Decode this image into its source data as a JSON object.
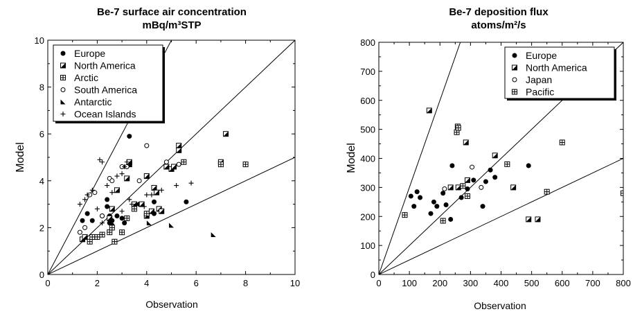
{
  "chart_data": [
    {
      "type": "scatter",
      "title": "Be-7 surface air concentration",
      "subtitle": "mBq/m³STP",
      "xlabel": "Observation",
      "ylabel": "Model",
      "xlim": [
        0,
        10
      ],
      "ylim": [
        0,
        10
      ],
      "xticks": [
        "0",
        "2",
        "4",
        "6",
        "8",
        "10"
      ],
      "yticks": [
        "0",
        "2",
        "4",
        "6",
        "8",
        "10"
      ],
      "reference_lines_slope": [
        0.5,
        1,
        2
      ],
      "legend_position": "top-left",
      "series": [
        {
          "name": "Europe",
          "marker": "filled-circle",
          "points": [
            [
              1.4,
              2.3
            ],
            [
              1.6,
              2.6
            ],
            [
              1.8,
              2.3
            ],
            [
              2.2,
              2.5
            ],
            [
              2.4,
              3.2
            ],
            [
              2.4,
              2.9
            ],
            [
              2.5,
              2.5
            ],
            [
              2.5,
              2.2
            ],
            [
              2.6,
              2.3
            ],
            [
              2.6,
              2.1
            ],
            [
              2.8,
              2.5
            ],
            [
              3.0,
              2.4
            ],
            [
              3.1,
              2.2
            ],
            [
              3.2,
              4.1
            ],
            [
              3.3,
              5.9
            ],
            [
              3.5,
              3.0
            ],
            [
              3.7,
              3.0
            ],
            [
              4.3,
              3.1
            ],
            [
              4.3,
              2.6
            ],
            [
              5.6,
              3.1
            ]
          ]
        },
        {
          "name": "North America",
          "marker": "half-square",
          "points": [
            [
              1.4,
              1.5
            ],
            [
              1.5,
              1.6
            ],
            [
              2.5,
              2.4
            ],
            [
              2.6,
              2.8
            ],
            [
              2.8,
              3.6
            ],
            [
              3.2,
              4.1
            ],
            [
              3.3,
              4.7
            ],
            [
              3.3,
              4.8
            ],
            [
              3.5,
              3.0
            ],
            [
              3.8,
              3.0
            ],
            [
              4.0,
              2.5
            ],
            [
              4.0,
              4.2
            ],
            [
              4.2,
              2.7
            ],
            [
              4.3,
              3.7
            ],
            [
              4.4,
              3.5
            ],
            [
              4.5,
              2.8
            ],
            [
              4.6,
              2.7
            ],
            [
              4.8,
              4.6
            ],
            [
              5.0,
              4.5
            ],
            [
              5.1,
              4.6
            ],
            [
              5.3,
              5.5
            ],
            [
              5.3,
              5.3
            ],
            [
              7.2,
              6.0
            ],
            [
              7.0,
              4.8
            ]
          ]
        },
        {
          "name": "Arctic",
          "marker": "grid-square",
          "points": [
            [
              1.7,
              1.4
            ],
            [
              1.8,
              1.6
            ],
            [
              2.0,
              1.6
            ],
            [
              2.2,
              1.7
            ],
            [
              2.5,
              1.8
            ],
            [
              2.6,
              2.0
            ],
            [
              2.7,
              1.4
            ],
            [
              3.0,
              1.8
            ],
            [
              3.2,
              2.4
            ],
            [
              3.5,
              2.8
            ],
            [
              4.0,
              2.6
            ],
            [
              5.5,
              4.8
            ],
            [
              7.0,
              4.7
            ],
            [
              8.0,
              4.7
            ]
          ]
        },
        {
          "name": "South America",
          "marker": "open-circle",
          "points": [
            [
              1.3,
              1.8
            ],
            [
              1.5,
              2.0
            ],
            [
              1.7,
              3.4
            ],
            [
              1.9,
              3.5
            ],
            [
              2.2,
              2.5
            ],
            [
              2.5,
              4.1
            ],
            [
              2.6,
              4.0
            ],
            [
              3.0,
              4.6
            ],
            [
              3.2,
              4.6
            ],
            [
              3.7,
              4.0
            ],
            [
              4.0,
              5.5
            ],
            [
              4.8,
              4.8
            ],
            [
              5.3,
              4.7
            ]
          ]
        },
        {
          "name": "Antarctic",
          "marker": "filled-triangle",
          "points": [
            [
              4.1,
              2.2
            ],
            [
              5.0,
              2.1
            ],
            [
              6.7,
              1.7
            ]
          ]
        },
        {
          "name": "Ocean Islands",
          "marker": "plus",
          "points": [
            [
              1.3,
              3.0
            ],
            [
              1.5,
              3.2
            ],
            [
              1.6,
              3.4
            ],
            [
              1.8,
              3.6
            ],
            [
              2.0,
              2.8
            ],
            [
              2.1,
              4.9
            ],
            [
              2.2,
              4.8
            ],
            [
              2.4,
              3.8
            ],
            [
              2.6,
              3.5
            ],
            [
              2.8,
              4.2
            ],
            [
              3.0,
              4.3
            ],
            [
              3.1,
              4.6
            ],
            [
              3.2,
              4.8
            ],
            [
              3.3,
              3.2
            ],
            [
              3.4,
              3.0
            ],
            [
              3.6,
              3.0
            ],
            [
              3.9,
              2.9
            ],
            [
              4.0,
              3.4
            ],
            [
              4.2,
              3.4
            ],
            [
              4.6,
              3.6
            ],
            [
              5.2,
              3.8
            ],
            [
              5.8,
              3.9
            ],
            [
              3.0,
              2.7
            ],
            [
              2.8,
              2.5
            ],
            [
              2.2,
              2.2
            ]
          ]
        }
      ]
    },
    {
      "type": "scatter",
      "title": "Be-7 deposition flux",
      "subtitle": "atoms/m²/s",
      "xlabel": "Observation",
      "ylabel": "Model",
      "xlim": [
        0,
        800
      ],
      "ylim": [
        0,
        800
      ],
      "xticks": [
        "0",
        "100",
        "200",
        "300",
        "400",
        "500",
        "600",
        "700",
        "800"
      ],
      "yticks": [
        "0",
        "100",
        "200",
        "300",
        "400",
        "500",
        "600",
        "700",
        "800"
      ],
      "reference_lines_slope": [
        0.5,
        1,
        3
      ],
      "legend_position": "top-right",
      "series": [
        {
          "name": "Europe",
          "marker": "filled-circle",
          "points": [
            [
              105,
              270
            ],
            [
              115,
              235
            ],
            [
              125,
              285
            ],
            [
              135,
              265
            ],
            [
              170,
              210
            ],
            [
              180,
              250
            ],
            [
              190,
              235
            ],
            [
              210,
              280
            ],
            [
              220,
              240
            ],
            [
              235,
              190
            ],
            [
              240,
              375
            ],
            [
              270,
              265
            ],
            [
              290,
              295
            ],
            [
              310,
              325
            ],
            [
              340,
              235
            ],
            [
              350,
              320
            ],
            [
              365,
              360
            ],
            [
              380,
              335
            ],
            [
              490,
              375
            ]
          ]
        },
        {
          "name": "North America",
          "marker": "half-square",
          "points": [
            [
              165,
              565
            ],
            [
              235,
              300
            ],
            [
              260,
              300
            ],
            [
              285,
              455
            ],
            [
              290,
              325
            ],
            [
              380,
              410
            ],
            [
              440,
              300
            ],
            [
              490,
              190
            ],
            [
              520,
              190
            ]
          ]
        },
        {
          "name": "Japan",
          "marker": "open-circle",
          "points": [
            [
              215,
              295
            ],
            [
              305,
              370
            ],
            [
              335,
              300
            ]
          ]
        },
        {
          "name": "Pacific",
          "marker": "grid-square",
          "points": [
            [
              85,
              205
            ],
            [
              210,
              185
            ],
            [
              255,
              490
            ],
            [
              258,
              510
            ],
            [
              260,
              505
            ],
            [
              275,
              305
            ],
            [
              290,
              270
            ],
            [
              420,
              380
            ],
            [
              550,
              285
            ],
            [
              600,
              455
            ],
            [
              800,
              280
            ]
          ]
        }
      ]
    }
  ]
}
